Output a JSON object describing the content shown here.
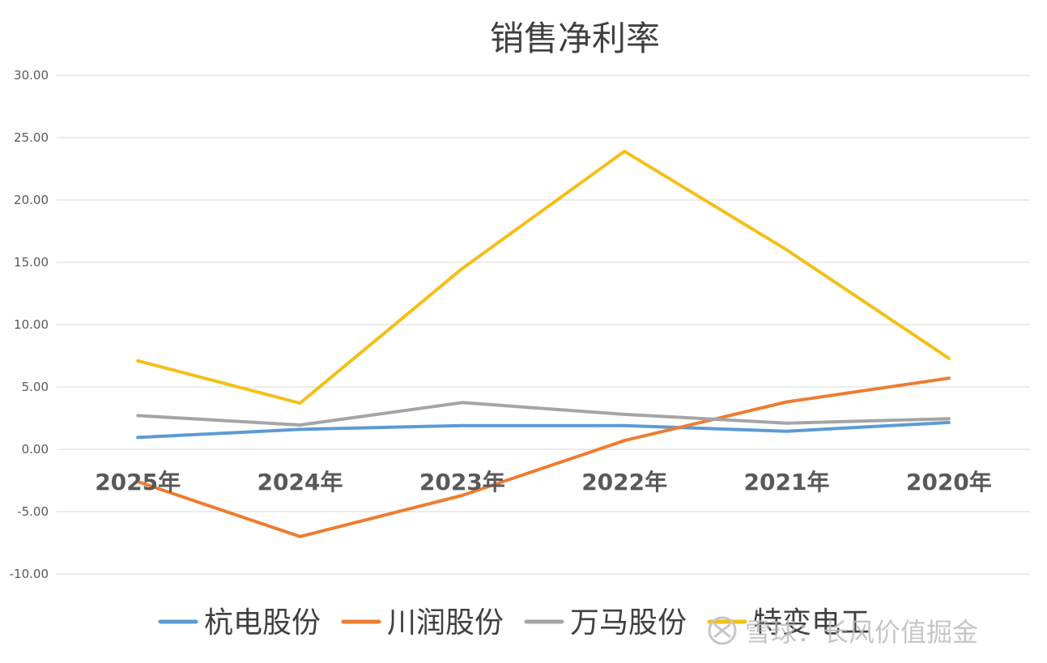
{
  "chart_data": {
    "type": "line",
    "title": "销售净利率",
    "categories": [
      "2025年",
      "2024年",
      "2023年",
      "2022年",
      "2021年",
      "2020年"
    ],
    "ylim": [
      -10,
      30
    ],
    "yticks": [
      "30.00",
      "25.00",
      "20.00",
      "15.00",
      "10.00",
      "5.00",
      "0.00",
      "-5.00",
      "-10.00"
    ],
    "grid": true,
    "legend_position": "bottom",
    "series": [
      {
        "name": "杭电股份",
        "color": "#5b9bd5",
        "values": [
          0.95,
          1.6,
          1.9,
          1.9,
          1.45,
          2.15
        ]
      },
      {
        "name": "川润股份",
        "color": "#ed7d31",
        "values": [
          -2.6,
          -7.0,
          -3.7,
          0.7,
          3.8,
          5.7
        ]
      },
      {
        "name": "万马股份",
        "color": "#a5a5a5",
        "values": [
          2.7,
          1.95,
          3.75,
          2.8,
          2.1,
          2.45
        ]
      },
      {
        "name": "特变电工",
        "color": "#f5bf16",
        "values": [
          7.1,
          3.7,
          14.5,
          23.9,
          16.0,
          7.3
        ]
      }
    ]
  },
  "watermark": {
    "text": "雪球：长风价值掘金"
  }
}
